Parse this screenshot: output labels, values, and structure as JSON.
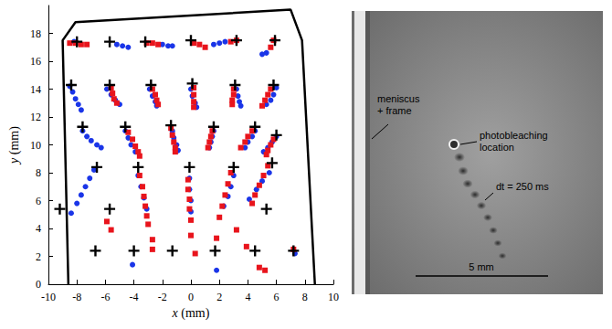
{
  "chart_data": {
    "type": "scatter",
    "x_label": "x (mm)",
    "y_label": "y (mm)",
    "xlim": [
      -10,
      10
    ],
    "ylim": [
      0,
      20
    ],
    "xticks": [
      -10,
      -8,
      -6,
      -4,
      -2,
      0,
      2,
      4,
      6,
      8,
      10
    ],
    "yticks": [
      0,
      2,
      4,
      6,
      8,
      10,
      12,
      14,
      16,
      18
    ],
    "grid": false,
    "series": [
      {
        "type": "line",
        "color": "#000000",
        "line_style": "solid",
        "x": [
          -8.6,
          -9.0,
          -8.1,
          7.0,
          7.8,
          8.7
        ],
        "values": [
          0,
          17.5,
          18.8,
          19.7,
          17.5,
          0
        ]
      },
      {
        "type": "scatter",
        "color": "#1a35e8",
        "marker": "circle",
        "x": [
          -8.2,
          -5.2,
          -4.8,
          -4.4,
          -2.0,
          -1.6,
          -1.3,
          1.6,
          2.0,
          2.4,
          5.0,
          5.3,
          -8.5,
          -8.3,
          -8.1,
          -7.9,
          -7.7,
          -5.9,
          -5.6,
          -5.3,
          -5.0,
          -2.9,
          -2.7,
          -2.5,
          -2.4,
          0.0,
          0.1,
          0.3,
          0.4,
          3.2,
          3.3,
          3.4,
          3.5,
          6.0,
          5.8,
          5.6,
          5.3,
          -7.6,
          -7.3,
          -7.0,
          -6.6,
          -6.3,
          -4.6,
          -4.4,
          -4.2,
          -3.9,
          -1.3,
          -1.2,
          -1.0,
          -0.9,
          1.6,
          1.5,
          1.4,
          1.3,
          4.5,
          4.3,
          4.0,
          3.8,
          6.0,
          5.7,
          5.4,
          5.1,
          -6.8,
          -7.1,
          -7.4,
          -7.7,
          -8.0,
          -8.4,
          -3.7,
          -3.5,
          -3.3,
          -3.1,
          -0.1,
          -0.1,
          0.0,
          0.0,
          3.0,
          2.8,
          2.6,
          2.3,
          5.5,
          5.0,
          4.6,
          4.1,
          -4.1,
          1.8,
          7.3
        ],
        "values": [
          17.4,
          17.2,
          17.1,
          17.0,
          17.2,
          17.1,
          17.1,
          17.2,
          17.3,
          17.4,
          16.5,
          16.6,
          14.2,
          13.8,
          13.3,
          12.9,
          12.5,
          14.0,
          13.6,
          13.2,
          12.9,
          14.0,
          13.5,
          13.1,
          12.8,
          14.0,
          13.5,
          13.0,
          12.7,
          14.0,
          13.5,
          13.1,
          12.8,
          14.1,
          13.6,
          13.2,
          12.9,
          11.0,
          10.6,
          10.3,
          10.0,
          9.8,
          11.0,
          10.5,
          10.0,
          9.5,
          11.0,
          10.5,
          10.0,
          9.6,
          11.0,
          10.6,
          10.2,
          9.8,
          11.0,
          10.6,
          10.2,
          9.8,
          10.6,
          10.2,
          9.8,
          9.5,
          8.2,
          7.6,
          7.0,
          6.4,
          5.8,
          5.1,
          7.8,
          7.0,
          6.2,
          5.4,
          7.6,
          6.8,
          6.0,
          5.2,
          7.8,
          7.0,
          6.3,
          5.6,
          8.0,
          7.4,
          6.8,
          6.1,
          1.4,
          1.0,
          2.2
        ]
      },
      {
        "type": "scatter",
        "color": "#e8141c",
        "marker": "square",
        "x": [
          -8.5,
          -8.1,
          -7.7,
          -7.3,
          -3.1,
          -2.7,
          -2.3,
          0.2,
          0.6,
          1.0,
          2.8,
          3.2,
          5.6,
          5.8,
          -5.6,
          -5.5,
          -5.4,
          -5.2,
          -2.7,
          -2.5,
          -2.4,
          -2.3,
          0.2,
          0.2,
          0.2,
          0.2,
          3.0,
          3.0,
          2.9,
          2.9,
          5.6,
          5.4,
          5.2,
          5.0,
          -4.4,
          -4.1,
          -3.9,
          -3.7,
          -3.6,
          -1.4,
          -1.3,
          -1.2,
          -1.1,
          -1.1,
          1.5,
          1.4,
          1.3,
          1.2,
          4.3,
          4.0,
          3.8,
          3.5,
          5.8,
          5.6,
          5.4,
          5.3,
          -3.6,
          -3.4,
          -3.3,
          -3.2,
          -3.1,
          -3.0,
          -0.2,
          -0.2,
          -0.1,
          -0.1,
          0.0,
          2.8,
          2.6,
          2.4,
          2.2,
          2.0,
          5.4,
          5.1,
          4.8,
          4.5,
          4.3,
          -5.9,
          -5.6,
          -2.7,
          -2.7,
          0.0,
          0.3,
          1.8,
          3.2,
          3.9,
          4.8,
          5.2,
          7.2
        ],
        "values": [
          17.3,
          17.3,
          17.2,
          17.2,
          17.3,
          17.3,
          17.2,
          17.3,
          17.2,
          17.0,
          17.4,
          17.5,
          17.0,
          17.5,
          14.1,
          13.7,
          13.3,
          13.0,
          14.0,
          13.6,
          13.2,
          12.9,
          14.1,
          13.6,
          13.1,
          12.7,
          14.0,
          13.6,
          13.2,
          12.9,
          14.0,
          13.6,
          13.2,
          12.8,
          10.9,
          10.4,
          9.9,
          9.5,
          9.2,
          11.2,
          10.7,
          10.2,
          9.8,
          9.5,
          11.0,
          10.6,
          10.2,
          9.8,
          11.0,
          10.6,
          10.2,
          9.8,
          10.4,
          10.0,
          9.6,
          9.3,
          7.8,
          7.0,
          6.3,
          5.6,
          4.9,
          4.3,
          7.5,
          6.8,
          6.1,
          5.4,
          4.6,
          8.0,
          7.2,
          6.4,
          5.6,
          4.8,
          8.5,
          7.8,
          7.1,
          6.4,
          5.8,
          4.5,
          3.9,
          3.2,
          2.5,
          3.5,
          2.2,
          3.3,
          3.9,
          2.7,
          1.2,
          1.0,
          2.5
        ]
      },
      {
        "type": "scatter",
        "color": "#000000",
        "marker": "plus",
        "x": [
          -8.0,
          -5.7,
          -3.2,
          0.0,
          3.2,
          5.9,
          -8.4,
          -5.7,
          -2.8,
          0.1,
          3.1,
          5.8,
          -7.6,
          -4.6,
          -1.4,
          1.6,
          4.5,
          6.0,
          -6.6,
          -3.7,
          -0.1,
          3.0,
          5.7,
          -9.2,
          -5.7,
          5.3,
          -6.7,
          -4.0,
          -1.3,
          1.7,
          4.5,
          7.2
        ],
        "values": [
          17.4,
          17.4,
          17.4,
          17.5,
          17.5,
          17.5,
          14.3,
          14.3,
          14.3,
          14.4,
          14.3,
          14.3,
          11.3,
          11.3,
          11.4,
          11.3,
          11.3,
          10.7,
          8.4,
          8.4,
          8.4,
          8.4,
          8.7,
          5.4,
          5.4,
          5.4,
          2.4,
          2.4,
          2.4,
          2.4,
          2.4,
          2.4
        ]
      }
    ]
  },
  "image_panel": {
    "type": "photograph",
    "annotations": [
      {
        "text": "meniscus + frame"
      },
      {
        "text": "photobleaching location"
      },
      {
        "text": "dt = 250 ms"
      }
    ],
    "scale_bar": {
      "label": "5 mm"
    }
  }
}
